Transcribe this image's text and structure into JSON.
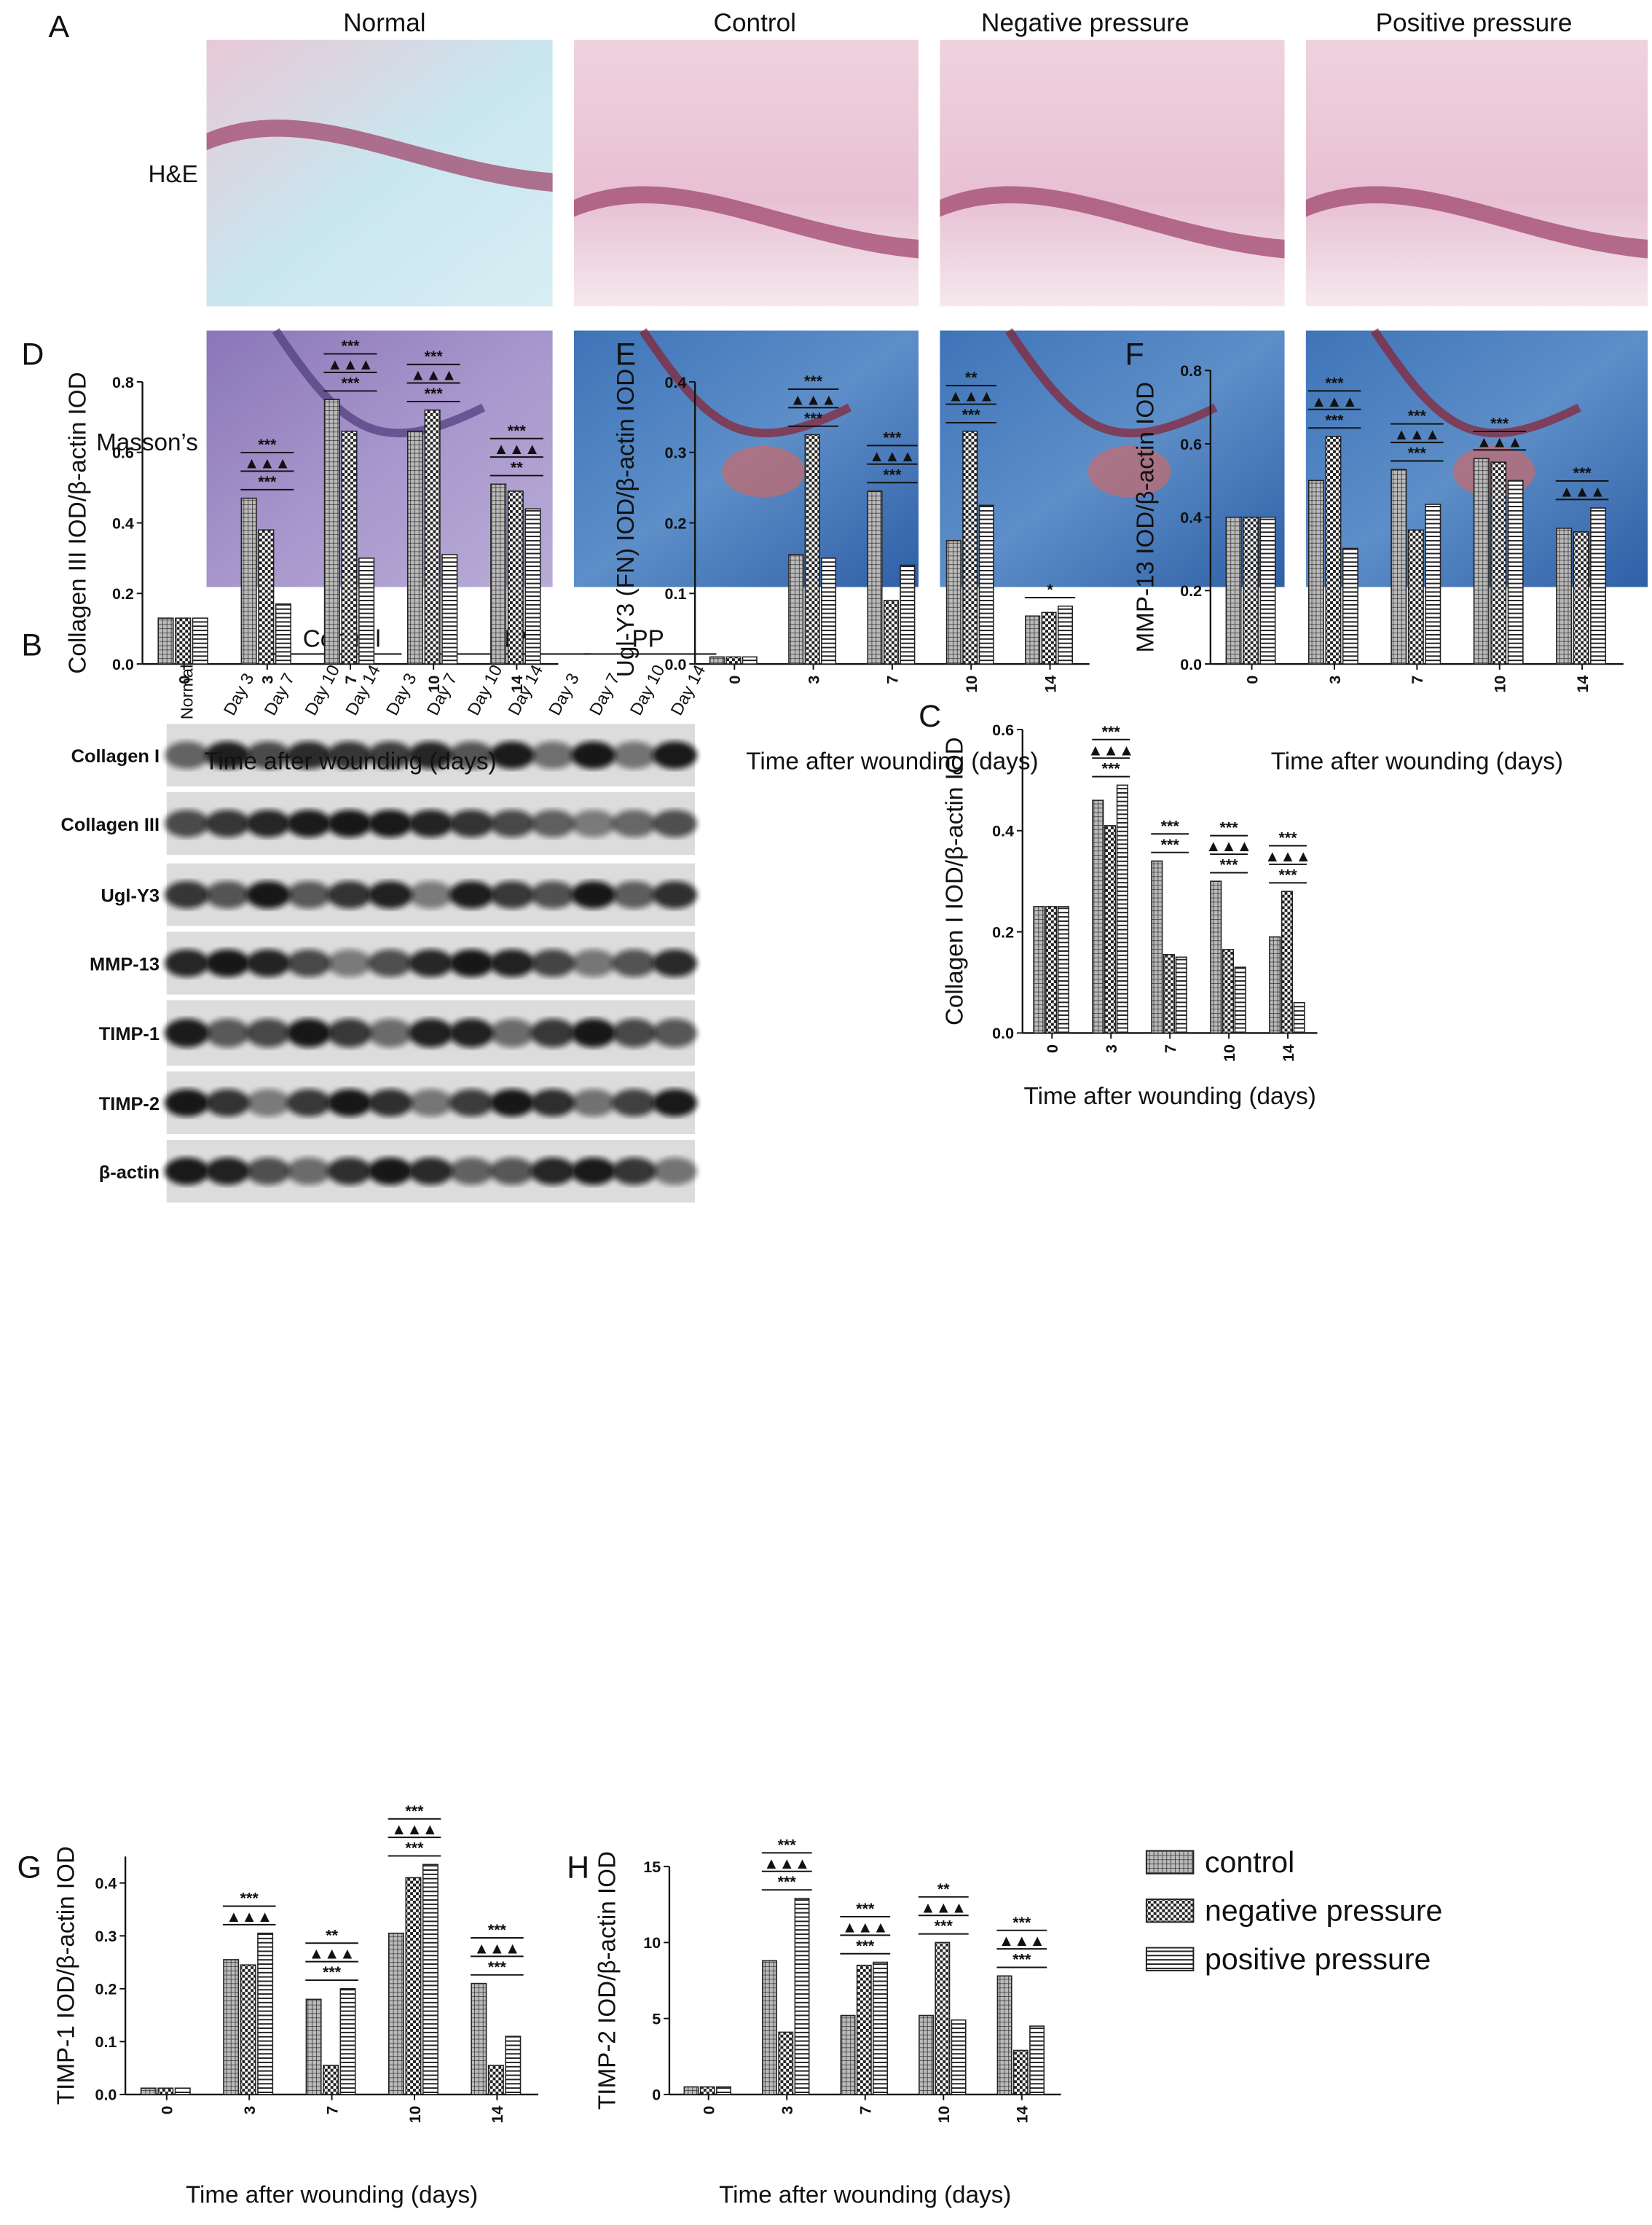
{
  "panel_a": {
    "label": "A",
    "columns": [
      "Normal",
      "Control",
      "Negative pressure",
      "Positive pressure"
    ],
    "rows": [
      "H&E",
      "Masson’s"
    ]
  },
  "panel_b": {
    "label": "B",
    "groups": [
      "Control",
      "NP",
      "PP"
    ],
    "lanes": [
      "Normal",
      "Day 3",
      "Day 7",
      "Day 10",
      "Day 14",
      "Day 3",
      "Day 7",
      "Day 10",
      "Day 14",
      "Day 3",
      "Day 7",
      "Day 10",
      "Day 14"
    ],
    "proteins": [
      "Collagen I",
      "Collagen III",
      "Ugl-Y3",
      "MMP-13",
      "TIMP-1",
      "TIMP-2",
      "β-actin"
    ]
  },
  "chart_data": [
    {
      "type": "bar",
      "panel_label": "C",
      "y_label": "Collagen I IOD/β-actin IOD",
      "x_label": "Time after wounding (days)",
      "categories": [
        "0",
        "3",
        "7",
        "10",
        "14"
      ],
      "ylim": [
        0,
        0.6
      ],
      "yticks": [
        {
          "value": 0,
          "label": "0.0"
        },
        0.2,
        0.4,
        0.6
      ],
      "series": [
        {
          "name": "control",
          "color": "#222222",
          "pattern": "grid",
          "values": [
            0.25,
            0.46,
            0.34,
            0.3,
            0.19
          ]
        },
        {
          "name": "negative pressure",
          "color": "#222222",
          "pattern": "check",
          "values": [
            0.25,
            0.41,
            0.155,
            0.165,
            0.28
          ]
        },
        {
          "name": "positive pressure",
          "color": "#222222",
          "pattern": "hlines",
          "values": [
            0.25,
            0.49,
            0.15,
            0.13,
            0.06
          ]
        }
      ],
      "significance": [
        [],
        [
          "***",
          "▲▲▲",
          "***"
        ],
        [
          "***",
          "***"
        ],
        [
          "***",
          "▲▲▲",
          "***"
        ],
        [
          "***",
          "▲▲▲",
          "***"
        ]
      ]
    },
    {
      "type": "bar",
      "panel_label": "D",
      "y_label": "Collagen III IOD/β-actin IOD",
      "x_label": "Time after wounding (days)",
      "categories": [
        "0",
        "3",
        "7",
        "10",
        "14"
      ],
      "ylim": [
        0,
        0.8
      ],
      "yticks": [
        {
          "value": 0,
          "label": "0.0"
        },
        0.2,
        0.4,
        0.6,
        0.8
      ],
      "series": [
        {
          "color": "#222222",
          "pattern": "grid",
          "values": [
            0.13,
            0.47,
            0.75,
            0.66,
            0.51
          ]
        },
        {
          "color": "#222222",
          "pattern": "check",
          "values": [
            0.13,
            0.38,
            0.66,
            0.72,
            0.49
          ]
        },
        {
          "color": "#222222",
          "pattern": "hlines",
          "values": [
            0.13,
            0.17,
            0.3,
            0.31,
            0.44
          ]
        }
      ],
      "significance": [
        [],
        [
          "***",
          "▲▲▲",
          "***"
        ],
        [
          "***",
          "▲▲▲",
          "***"
        ],
        [
          "***",
          "▲▲▲",
          "***"
        ],
        [
          "**",
          "▲▲▲",
          "***"
        ]
      ]
    },
    {
      "type": "bar",
      "panel_label": "E",
      "y_label": "Ugl-Y3 (FN) IOD/β-actin IOD",
      "x_label": "Time after wounding (days)",
      "categories": [
        "0",
        "3",
        "7",
        "10",
        "14"
      ],
      "ylim": [
        0,
        0.4
      ],
      "yticks": [
        {
          "value": 0,
          "label": "0.0"
        },
        0.1,
        0.2,
        0.3,
        0.4
      ],
      "series": [
        {
          "color": "#222222",
          "pattern": "grid",
          "values": [
            0.01,
            0.155,
            0.245,
            0.175,
            0.068
          ]
        },
        {
          "color": "#222222",
          "pattern": "check",
          "values": [
            0.01,
            0.325,
            0.09,
            0.33,
            0.073
          ]
        },
        {
          "color": "#222222",
          "pattern": "hlines",
          "values": [
            0.01,
            0.15,
            0.14,
            0.225,
            0.082
          ]
        }
      ],
      "significance": [
        [],
        [
          "***",
          "▲▲▲",
          "***"
        ],
        [
          "***",
          "▲▲▲",
          "***"
        ],
        [
          "***",
          "▲▲▲",
          "**"
        ],
        [
          "*"
        ]
      ]
    },
    {
      "type": "bar",
      "panel_label": "F",
      "y_label": "MMP-13 IOD/β-actin IOD",
      "x_label": "Time after wounding (days)",
      "categories": [
        "0",
        "3",
        "7",
        "10",
        "14"
      ],
      "ylim": [
        0,
        0.8
      ],
      "yticks": [
        {
          "value": 0,
          "label": "0.0"
        },
        0.2,
        0.4,
        0.6,
        0.8
      ],
      "series": [
        {
          "color": "#222222",
          "pattern": "grid",
          "values": [
            0.4,
            0.5,
            0.53,
            0.56,
            0.37
          ]
        },
        {
          "color": "#222222",
          "pattern": "check",
          "values": [
            0.4,
            0.62,
            0.365,
            0.55,
            0.36
          ]
        },
        {
          "color": "#222222",
          "pattern": "hlines",
          "values": [
            0.4,
            0.315,
            0.435,
            0.5,
            0.425
          ]
        }
      ],
      "significance": [
        [],
        [
          "***",
          "▲▲▲",
          "***"
        ],
        [
          "***",
          "▲▲▲",
          "***"
        ],
        [
          "▲▲▲",
          "***"
        ],
        [
          "▲▲▲",
          "***"
        ]
      ]
    },
    {
      "type": "bar",
      "panel_label": "G",
      "y_label": "TIMP-1 IOD/β-actin IOD",
      "x_label": "Time after wounding (days)",
      "categories": [
        "0",
        "3",
        "7",
        "10",
        "14"
      ],
      "ylim": [
        0,
        0.45
      ],
      "yticks": [
        {
          "value": 0,
          "label": "0.0"
        },
        0.1,
        0.2,
        0.3,
        0.4
      ],
      "series": [
        {
          "color": "#222222",
          "pattern": "grid",
          "values": [
            0.012,
            0.255,
            0.18,
            0.305,
            0.21
          ]
        },
        {
          "color": "#222222",
          "pattern": "check",
          "values": [
            0.012,
            0.245,
            0.055,
            0.41,
            0.055
          ]
        },
        {
          "color": "#222222",
          "pattern": "hlines",
          "values": [
            0.012,
            0.305,
            0.2,
            0.435,
            0.11
          ]
        }
      ],
      "significance": [
        [],
        [
          "▲▲▲",
          "***"
        ],
        [
          "***",
          "▲▲▲",
          "**"
        ],
        [
          "***",
          "▲▲▲",
          "***"
        ],
        [
          "***",
          "▲▲▲",
          "***"
        ]
      ]
    },
    {
      "type": "bar",
      "panel_label": "H",
      "y_label": "TIMP-2 IOD/β-actin IOD",
      "x_label": "Time after wounding (days)",
      "categories": [
        "0",
        "3",
        "7",
        "10",
        "14"
      ],
      "ylim": [
        0,
        15
      ],
      "yticks": [
        0,
        5,
        10,
        15
      ],
      "series": [
        {
          "color": "#222222",
          "pattern": "grid",
          "values": [
            0.5,
            8.8,
            5.2,
            5.2,
            7.8
          ]
        },
        {
          "color": "#222222",
          "pattern": "check",
          "values": [
            0.5,
            4.1,
            8.5,
            10,
            2.9
          ]
        },
        {
          "color": "#222222",
          "pattern": "hlines",
          "values": [
            0.5,
            12.9,
            8.7,
            4.9,
            4.5
          ]
        }
      ],
      "significance": [
        [],
        [
          "***",
          "▲▲▲",
          "***"
        ],
        [
          "***",
          "▲▲▲",
          "***"
        ],
        [
          "***",
          "▲▲▲",
          "**"
        ],
        [
          "***",
          "▲▲▲",
          "***"
        ]
      ]
    }
  ]
}
